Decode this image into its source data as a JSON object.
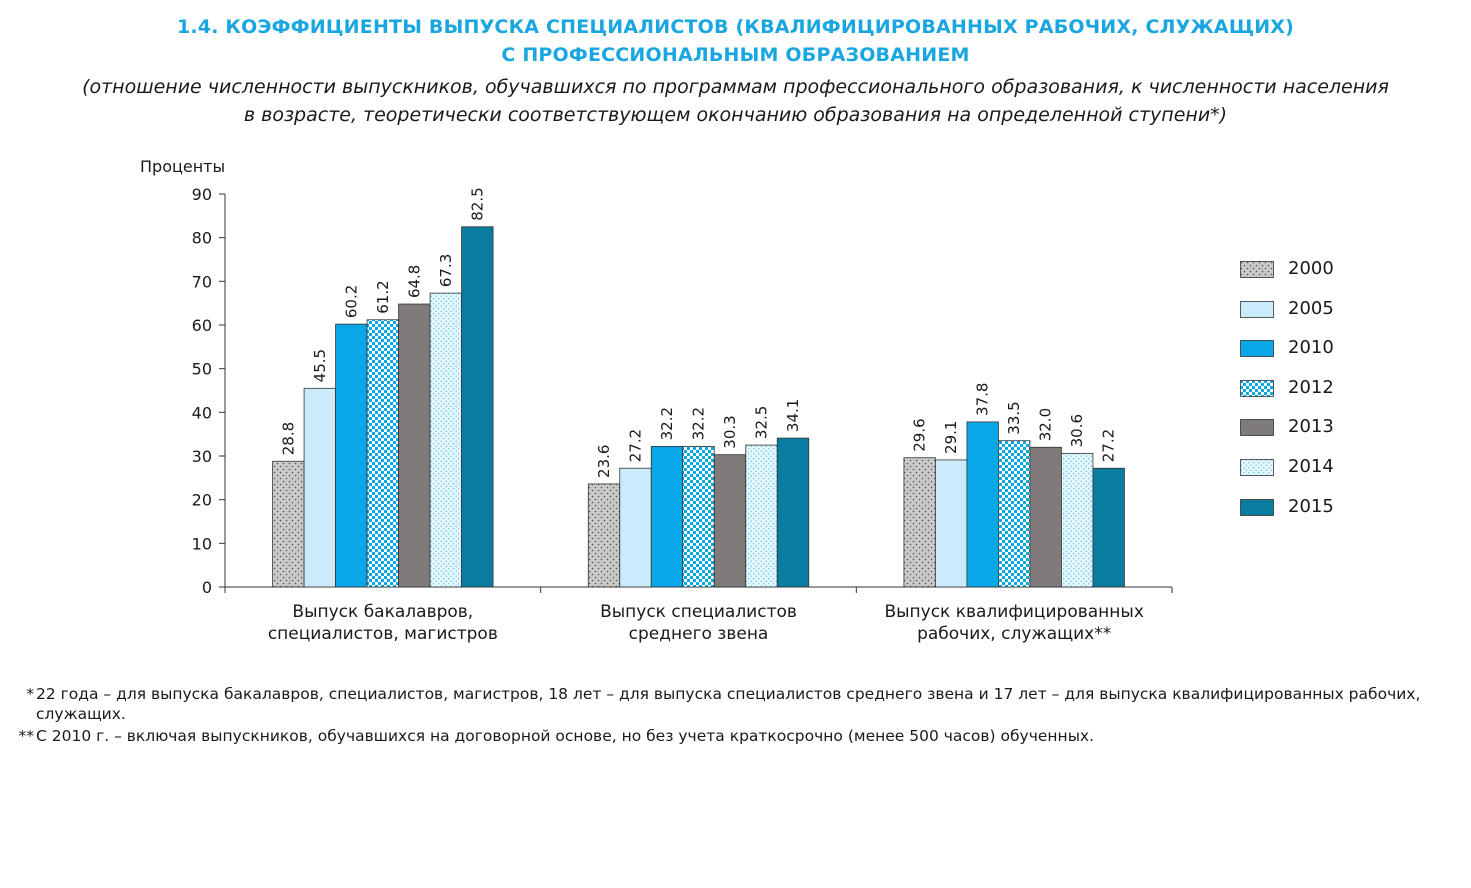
{
  "header": {
    "title_line1": "1.4. КОЭФФИЦИЕНТЫ ВЫПУСКА СПЕЦИАЛИСТОВ (КВАЛИФИЦИРОВАННЫХ РАБОЧИХ, СЛУЖАЩИХ)",
    "title_line2": "С ПРОФЕССИОНАЛЬНЫМ ОБРАЗОВАНИЕМ",
    "subtitle_line1": "(отношение численности выпускников, обучавшихся по программам профессионального образования, к численности населения",
    "subtitle_line2": "в возрасте, теоретически соответствующем окончанию образования на определенной ступени*)"
  },
  "chart_data": {
    "type": "bar",
    "ylabel": "Проценты",
    "ylim": [
      0,
      90
    ],
    "yticks": [
      0,
      10,
      20,
      30,
      40,
      50,
      60,
      70,
      80,
      90
    ],
    "grid": false,
    "legend_position": "right",
    "categories": [
      [
        "Выпуск бакалавров,",
        "специалистов, магистров"
      ],
      [
        "Выпуск специалистов",
        "среднего звена"
      ],
      [
        "Выпуск квалифицированных",
        "рабочих, служащих**"
      ]
    ],
    "series": [
      {
        "name": "2000",
        "values": [
          28.8,
          23.6,
          29.6
        ],
        "labels": [
          "28.8",
          "23.6",
          "29.6"
        ],
        "color": "#c8c8c8",
        "pattern": "dots"
      },
      {
        "name": "2005",
        "values": [
          45.5,
          27.2,
          29.1
        ],
        "labels": [
          "45.5",
          "27.2",
          "29.1"
        ],
        "color": "#cbeafa",
        "pattern": "solid"
      },
      {
        "name": "2010",
        "values": [
          60.2,
          32.2,
          37.8
        ],
        "labels": [
          "60.2",
          "32.2",
          "37.8"
        ],
        "color": "#0aa7e6",
        "pattern": "solid"
      },
      {
        "name": "2012",
        "values": [
          61.2,
          32.2,
          33.5
        ],
        "labels": [
          "61.2",
          "32.2",
          "33.5"
        ],
        "color": "#0aa7e6",
        "pattern": "checker"
      },
      {
        "name": "2013",
        "values": [
          64.8,
          30.3,
          32.0
        ],
        "labels": [
          "64.8",
          "30.3",
          "32.0"
        ],
        "color": "#7f7b7b",
        "pattern": "solid"
      },
      {
        "name": "2014",
        "values": [
          67.3,
          32.5,
          30.6
        ],
        "labels": [
          "67.3",
          "32.5",
          "30.6"
        ],
        "color": "#dff3fc",
        "pattern": "lightdots"
      },
      {
        "name": "2015",
        "values": [
          82.5,
          34.1,
          27.2
        ],
        "labels": [
          "82.5",
          "34.1",
          "27.2"
        ],
        "color": "#0a7ca0",
        "pattern": "solid"
      }
    ]
  },
  "footnotes": [
    {
      "mark": "*",
      "text": "22 года – для выпуска бакалавров, специалистов, магистров, 18 лет – для выпуска специалистов среднего звена и 17 лет – для выпуска квалифицированных рабочих, служащих."
    },
    {
      "mark": "**",
      "text": "С 2010 г. – включая выпускников, обучавшихся на договорной основе, но без учета краткосрочно (менее 500 часов) обученных."
    }
  ]
}
